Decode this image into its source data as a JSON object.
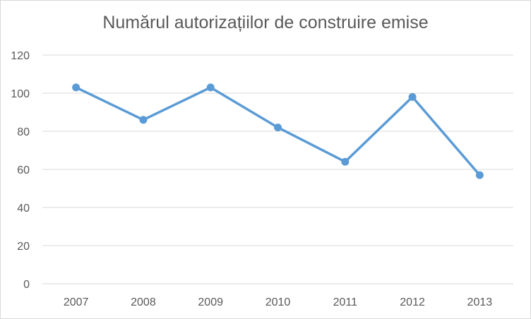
{
  "chart_data": {
    "type": "line",
    "title": "Numărul autorizațiilor de construire emise",
    "xlabel": "",
    "ylabel": "",
    "categories": [
      "2007",
      "2008",
      "2009",
      "2010",
      "2011",
      "2012",
      "2013"
    ],
    "series": [
      {
        "values": [
          103,
          86,
          103,
          82,
          64,
          98,
          57
        ]
      }
    ],
    "ylim": [
      0,
      120
    ],
    "yticks": [
      "0",
      "20",
      "40",
      "60",
      "80",
      "100",
      "120"
    ],
    "grid": true,
    "legend": "none",
    "line_color": "#5b9bd5",
    "grid_color": "#d9d9d9",
    "text_color": "#595959"
  }
}
